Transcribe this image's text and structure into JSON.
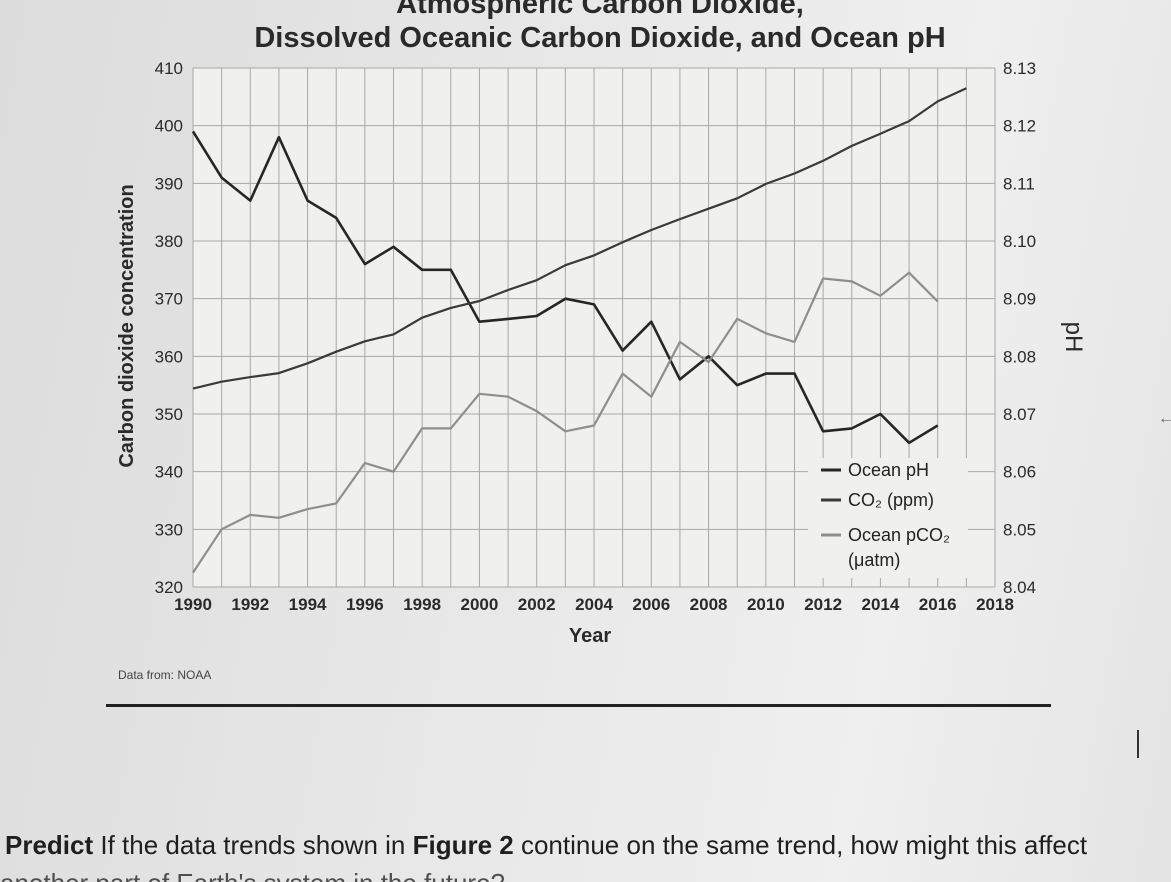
{
  "chart_data": {
    "type": "line",
    "title_line1": "Atmospheric Carbon Dioxide,",
    "title_line2": "Dissolved Oceanic Carbon Dioxide, and Ocean pH",
    "xlabel": "Year",
    "ylabel": "Carbon dioxide concentration",
    "y2label": "pH",
    "x_ticks": [
      1990,
      1992,
      1994,
      1996,
      1998,
      2000,
      2002,
      2004,
      2006,
      2008,
      2010,
      2012,
      2014,
      2016,
      2018
    ],
    "y_ticks": [
      320,
      330,
      340,
      350,
      360,
      370,
      380,
      390,
      400,
      410
    ],
    "y2_ticks": [
      "8.04",
      "8.05",
      "8.06",
      "8.07",
      "8.08",
      "8.09",
      "8.10",
      "8.11",
      "8.12",
      "8.13"
    ],
    "xlim": [
      1990,
      2018
    ],
    "ylim": [
      320,
      410
    ],
    "y2lim": [
      8.04,
      8.13
    ],
    "legend_position": "bottom-right",
    "legend": [
      "Ocean pH",
      "CO₂ (ppm)",
      "Ocean pCO₂",
      "(μatm)"
    ],
    "series": [
      {
        "name": "Ocean pH",
        "axis": "right",
        "x": [
          1990,
          1991,
          1992,
          1993,
          1994,
          1995,
          1996,
          1997,
          1998,
          1999,
          2000,
          2001,
          2002,
          2003,
          2004,
          2005,
          2006,
          2007,
          2008,
          2009,
          2010,
          2011,
          2012,
          2013,
          2014,
          2015,
          2016
        ],
        "values": [
          8.119,
          8.111,
          8.107,
          8.118,
          8.107,
          8.104,
          8.096,
          8.099,
          8.095,
          8.095,
          8.086,
          8.0865,
          8.087,
          8.09,
          8.089,
          8.081,
          8.086,
          8.076,
          8.08,
          8.075,
          8.077,
          8.077,
          8.067,
          8.0675,
          8.07,
          8.065,
          8.068
        ]
      },
      {
        "name": "CO₂ (ppm)",
        "axis": "left",
        "x": [
          1990,
          1991,
          1992,
          1993,
          1994,
          1995,
          1996,
          1997,
          1998,
          1999,
          2000,
          2001,
          2002,
          2003,
          2004,
          2005,
          2006,
          2007,
          2008,
          2009,
          2010,
          2011,
          2012,
          2013,
          2014,
          2015,
          2016,
          2017
        ],
        "values": [
          354.4,
          355.6,
          356.4,
          357.1,
          358.8,
          360.8,
          362.6,
          363.8,
          366.7,
          368.4,
          369.6,
          371.5,
          373.2,
          375.8,
          377.5,
          379.8,
          381.9,
          383.8,
          385.6,
          387.4,
          389.9,
          391.7,
          393.9,
          396.5,
          398.6,
          400.8,
          404.2,
          406.5
        ]
      },
      {
        "name": "Ocean pCO₂ (μatm)",
        "axis": "left",
        "x": [
          1990,
          1991,
          1992,
          1993,
          1994,
          1995,
          1996,
          1997,
          1998,
          1999,
          2000,
          2001,
          2002,
          2003,
          2004,
          2005,
          2006,
          2007,
          2008,
          2009,
          2010,
          2011,
          2012,
          2013,
          2014,
          2015,
          2016
        ],
        "values": [
          322.5,
          330,
          332.5,
          332,
          333.5,
          334.5,
          341.5,
          340,
          347.5,
          347.5,
          353.5,
          353,
          350.5,
          347,
          348,
          357,
          353,
          362.5,
          359,
          366.5,
          364,
          362.5,
          373.5,
          373,
          370.5,
          374.5,
          369.5
        ]
      }
    ]
  },
  "credit": "Data from: NOAA",
  "prompt": {
    "label": "Predict",
    "text_before": "If the data trends shown in",
    "figure_ref": "Figure 2",
    "text_after": "continue on the same trend, how might this affect",
    "next_line": "another part of Earth's system in the future?"
  }
}
